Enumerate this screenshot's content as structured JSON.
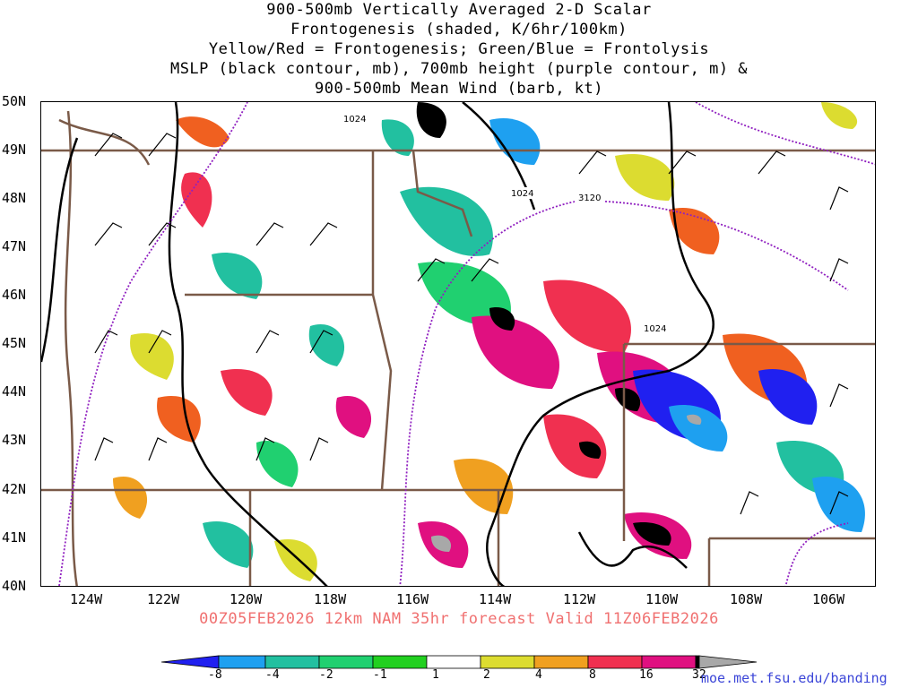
{
  "title": {
    "line1": "900-500mb Vertically Averaged 2-D Scalar",
    "line2": "Frontogenesis (shaded, K/6hr/100km)",
    "line3": "Yellow/Red = Frontogenesis;  Green/Blue = Frontolysis",
    "line4": "MSLP (black contour, mb), 700mb height (purple contour, m) &",
    "line5": "900-500mb Mean Wind (barb, kt)"
  },
  "lat_labels": [
    "50N",
    "49N",
    "48N",
    "47N",
    "46N",
    "45N",
    "44N",
    "43N",
    "42N",
    "41N",
    "40N"
  ],
  "lon_labels": [
    "124W",
    "122W",
    "120W",
    "118W",
    "116W",
    "114W",
    "112W",
    "110W",
    "108W",
    "106W"
  ],
  "contour_labels": {
    "mslp": [
      "1024",
      "1024",
      "1024"
    ],
    "height": "3120"
  },
  "valid_text": "00Z05FEB2026 12km NAM 35hr forecast Valid 11Z06FEB2026",
  "colorbar": {
    "labels": [
      "-8",
      "-4",
      "-2",
      "-1",
      "1",
      "2",
      "4",
      "8",
      "16",
      "32"
    ],
    "colors": [
      "#2020f0",
      "#1ea0f0",
      "#22c0a0",
      "#20d070",
      "#22d020",
      "#ffffff",
      "#dcdc30",
      "#f0a020",
      "#f06020",
      "#f03050",
      "#e01080",
      "#000000",
      "#a8a8a8"
    ]
  },
  "credit": "moe.met.fsu.edu/banding",
  "colors": {
    "borders": "#7a5a48",
    "mslp": "#000000",
    "height": "#9020c0",
    "valid_text": "#f07070",
    "credit": "#3c46d8"
  }
}
